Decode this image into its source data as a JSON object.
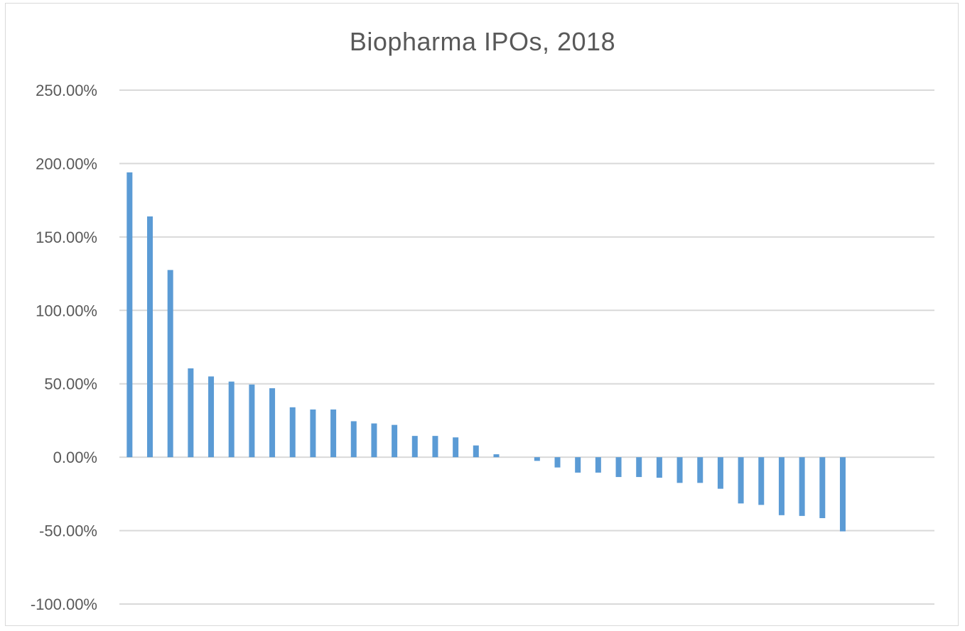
{
  "chart_data": {
    "type": "bar",
    "title": "Biopharma IPOs, 2018",
    "xlabel": "",
    "ylabel": "",
    "ylim": [
      -100,
      250
    ],
    "yticks": [
      250,
      200,
      150,
      100,
      50,
      0,
      -50,
      -100
    ],
    "ytick_labels": [
      "250.00%",
      "200.00%",
      "150.00%",
      "100.00%",
      "50.00%",
      "0.00%",
      "-50.00%",
      "-100.00%"
    ],
    "grid": true,
    "legend": "none",
    "bar_color": "#5b9bd5",
    "grid_color": "#d9d9d9",
    "category_count": 40,
    "values": [
      194,
      164,
      127.5,
      60.5,
      55,
      51.5,
      49.5,
      47,
      34,
      32.5,
      32.5,
      24.5,
      23,
      22,
      14.5,
      14.5,
      13.5,
      8,
      2,
      0,
      -2.5,
      -7,
      -10.5,
      -10.5,
      -13.5,
      -13.5,
      -14,
      -17.5,
      -17.5,
      -21.5,
      -31.5,
      -32.5,
      -39.5,
      -40,
      -41.5,
      -50.5,
      0,
      0,
      0,
      0
    ]
  }
}
